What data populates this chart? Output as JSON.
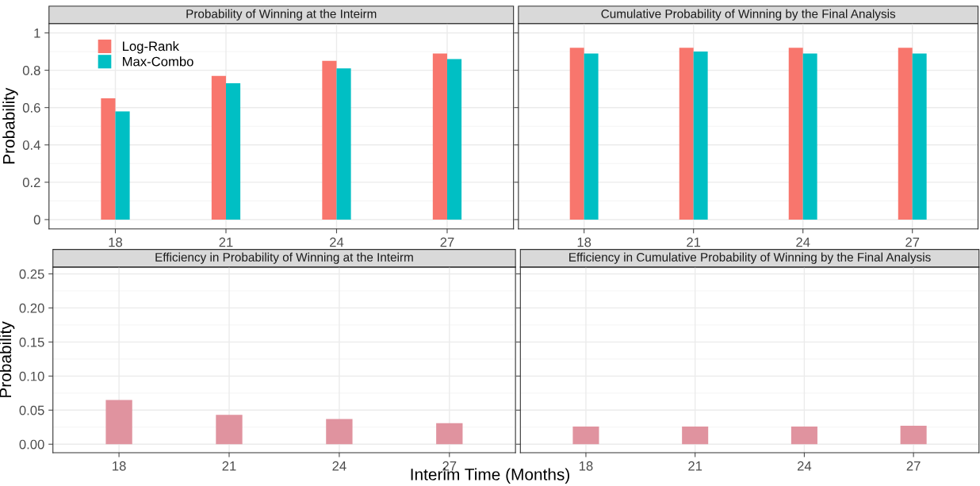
{
  "chart_data": [
    {
      "type": "bar",
      "title": "Probability of Winning at the Inteirm",
      "ylabel": "Probability",
      "categories": [
        "18",
        "21",
        "24",
        "27"
      ],
      "series": [
        {
          "name": "Log-Rank",
          "color": "#f8766d",
          "values": [
            0.65,
            0.77,
            0.85,
            0.89
          ]
        },
        {
          "name": "Max-Combo",
          "color": "#00bfc4",
          "values": [
            0.58,
            0.73,
            0.81,
            0.86
          ]
        }
      ],
      "ylim": [
        -0.05,
        1.05
      ],
      "yticks": [
        {
          "value": 0,
          "label": "0"
        },
        0.2,
        0.4,
        0.6,
        0.8,
        {
          "value": 1,
          "label": "1"
        }
      ],
      "grid": true,
      "legend": "top left"
    },
    {
      "type": "bar",
      "title": "Cumulative Probability of Winning by the Final Analysis",
      "categories": [
        "18",
        "21",
        "24",
        "27"
      ],
      "series": [
        {
          "color": "#f8766d",
          "values": [
            0.92,
            0.92,
            0.92,
            0.92
          ]
        },
        {
          "color": "#00bfc4",
          "values": [
            0.89,
            0.9,
            0.89,
            0.89
          ]
        }
      ],
      "ylim": [
        -0.05,
        1.05
      ],
      "tick_labels": "x",
      "grid": true
    },
    {
      "type": "bar",
      "title": "Efficiency in Probability of Winning at the Inteirm",
      "ylabel": "Probability",
      "xlabel": "Interim Time (Months)",
      "categories": [
        "18",
        "21",
        "24",
        "27"
      ],
      "series": [
        {
          "color": "#e0939f",
          "values": [
            0.065,
            0.043,
            0.037,
            0.031
          ]
        }
      ],
      "ylim": [
        -0.0125,
        0.26
      ],
      "yticks": [
        {
          "value": 0,
          "label": "0.00"
        },
        {
          "value": 0.05,
          "label": "0.05"
        },
        {
          "value": 0.1,
          "label": "0.10"
        },
        {
          "value": 0.15,
          "label": "0.15"
        },
        {
          "value": 0.2,
          "label": "0.20"
        },
        {
          "value": 0.25,
          "label": "0.25"
        }
      ],
      "grid": true
    },
    {
      "type": "bar",
      "title": "Efficiency in Cumulative Probability of Winning by the Final Analysis",
      "categories": [
        "18",
        "21",
        "24",
        "27"
      ],
      "series": [
        {
          "color": "#e0939f",
          "values": [
            0.026,
            0.026,
            0.026,
            0.027
          ]
        }
      ],
      "ylim": [
        -0.0125,
        0.26
      ],
      "tick_labels": "x",
      "grid": true
    }
  ]
}
